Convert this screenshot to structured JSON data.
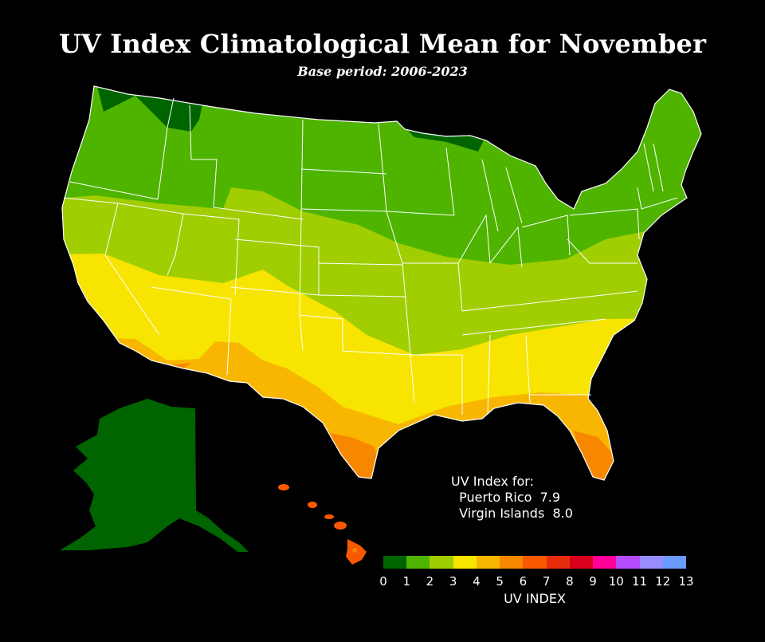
{
  "title": "UV Index Climatological Mean for November",
  "subtitle": "Base period: 2006-2023",
  "territory_note": {
    "heading": "UV Index for:",
    "lines": [
      {
        "place": "Puerto Rico",
        "value": "7.9"
      },
      {
        "place": "Virgin Islands",
        "value": "8.0"
      }
    ]
  },
  "colorbar": {
    "label": "UV INDEX",
    "ticks": [
      "0",
      "1",
      "2",
      "3",
      "4",
      "5",
      "6",
      "7",
      "8",
      "9",
      "10",
      "11",
      "12",
      "13"
    ],
    "colors": [
      "#006400",
      "#4eb400",
      "#a0ce00",
      "#f7e400",
      "#f8b600",
      "#f88700",
      "#f85900",
      "#e82c0e",
      "#d8001d",
      "#ff0099",
      "#b54cff",
      "#998cff",
      "#6b9bff"
    ]
  },
  "map_colors": {
    "alaska": "#006400",
    "hawaii": "#f85900",
    "hawaii_peak": "#f88700"
  }
}
